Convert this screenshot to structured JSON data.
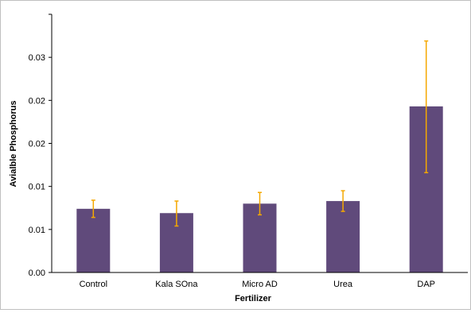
{
  "chart_data": {
    "type": "bar",
    "xlabel": "Fertilizer",
    "ylabel": "Avialble Phosphorus",
    "categories": [
      "Control",
      "Kala SOna",
      "Micro AD",
      "Urea",
      "DAP"
    ],
    "values": [
      0.0074,
      0.0069,
      0.008,
      0.0083,
      0.0193
    ],
    "error_low": [
      0.001,
      0.0015,
      0.0013,
      0.0012,
      0.0077
    ],
    "error_high": [
      0.001,
      0.0014,
      0.0013,
      0.0012,
      0.0076
    ],
    "ylim": [
      0,
      0.03
    ],
    "yticks": [
      "0.00",
      "0.01",
      "0.01",
      "0.02",
      "0.02",
      "0.03"
    ],
    "ytick_values": [
      0,
      0.005,
      0.01,
      0.015,
      0.02,
      0.025
    ],
    "grid": false,
    "legend": "none",
    "colors": {
      "bar": "#604a7b",
      "error": "#f5a800",
      "axis": "#000000"
    }
  }
}
